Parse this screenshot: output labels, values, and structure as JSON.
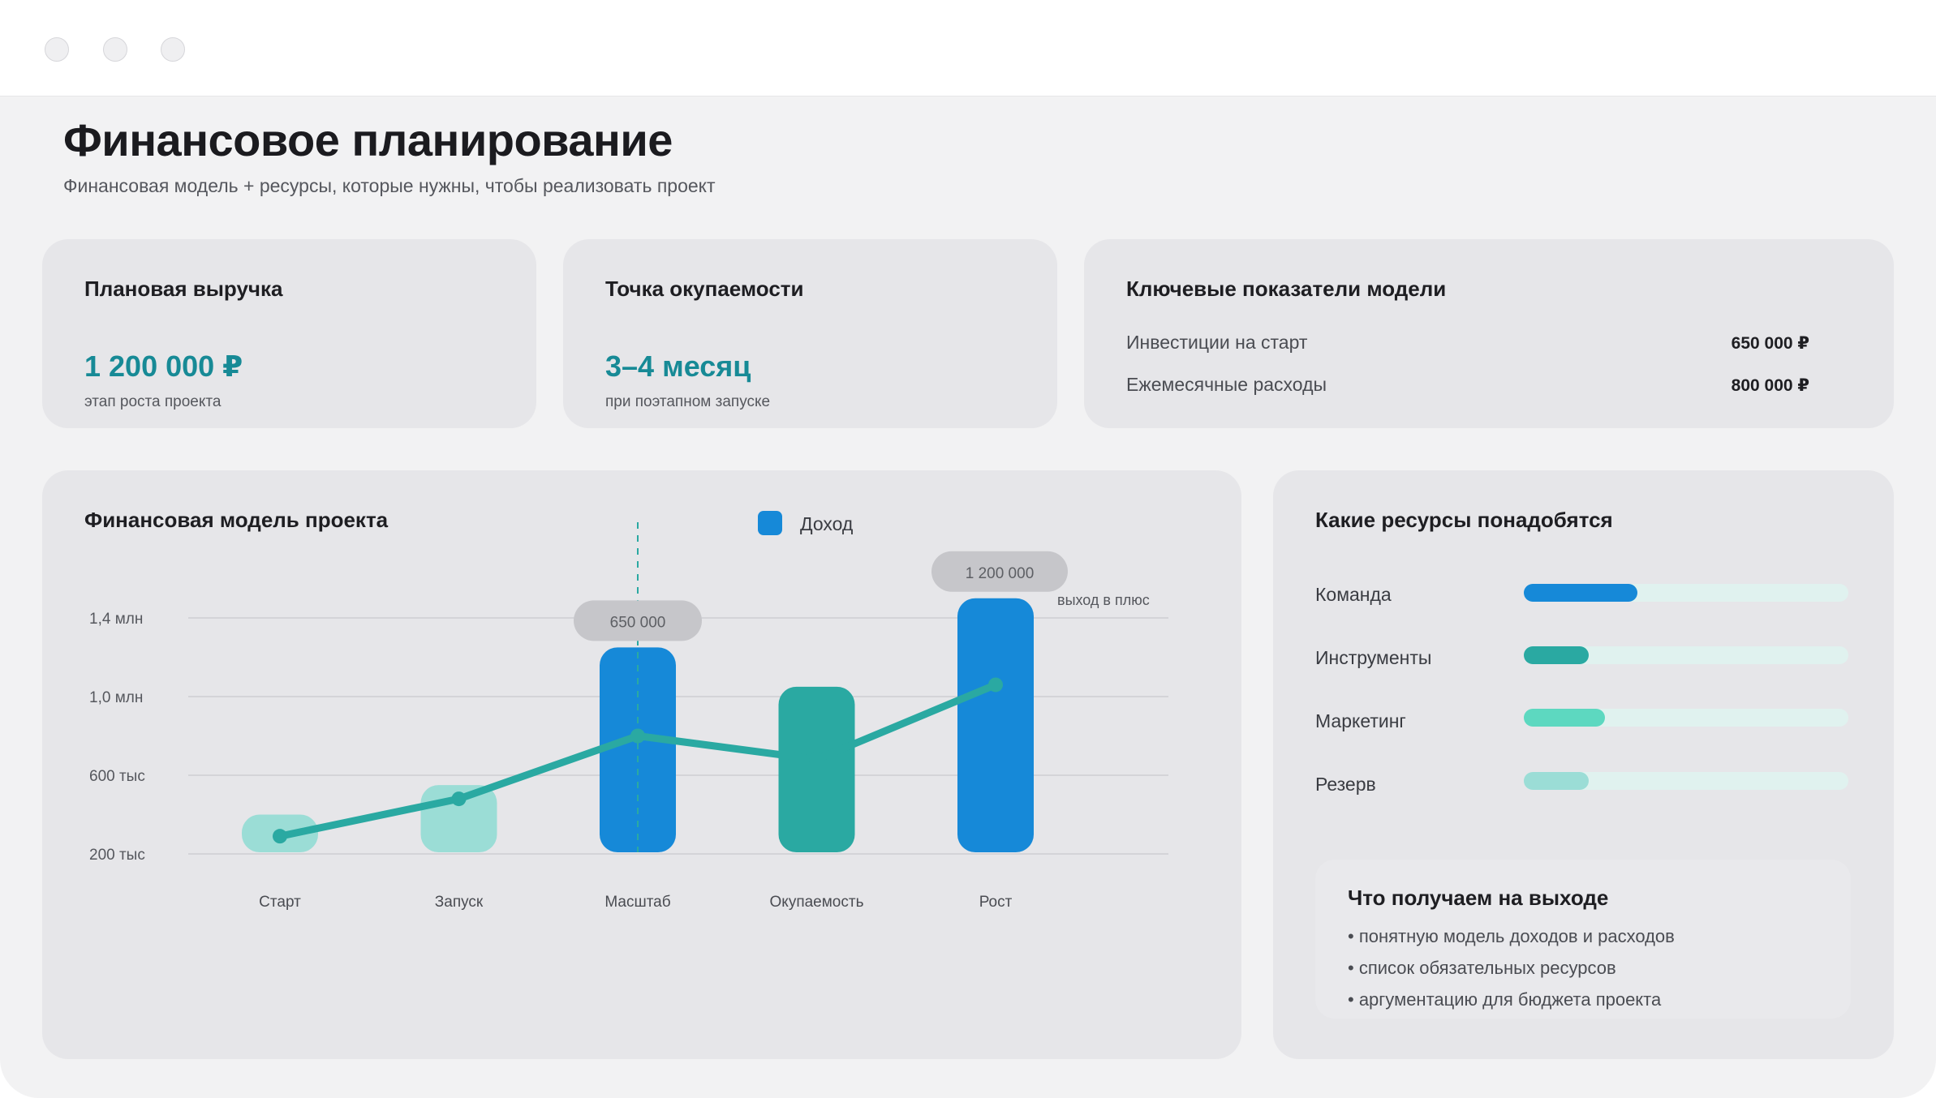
{
  "window": {
    "controls": [
      "close",
      "minimize",
      "maximize"
    ]
  },
  "header": {
    "title": "Финансовое планирование",
    "subtitle": "Финансовая модель + ресурсы, которые нужны, чтобы реализовать проект"
  },
  "kpis": {
    "revenue": {
      "title": "Плановая выручка",
      "value": "1 200 000 ₽",
      "caption": "этап роста проекта"
    },
    "payback": {
      "title": "Точка окупаемости",
      "value": "3–4 месяц",
      "caption": "при поэтапном запуске"
    },
    "metrics": {
      "title": "Ключевые показатели модели",
      "rows": [
        {
          "label": "Инвестиции на старт",
          "value": "650 000 ₽"
        },
        {
          "label": "Ежемесячные расходы",
          "value": "800 000 ₽"
        }
      ]
    }
  },
  "chart_panel": {
    "title": "Финансовая модель проекта"
  },
  "chart_data": {
    "type": "bar",
    "title": "Финансовая модель проекта",
    "categories": [
      "Старт",
      "Запуск",
      "Масштаб",
      "Окупаемость",
      "Рост"
    ],
    "series": [
      {
        "name": "Доход",
        "type": "bar",
        "values": [
          400000,
          550000,
          1250000,
          1050000,
          1500000
        ]
      },
      {
        "type": "line",
        "values": [
          290000,
          480000,
          800000,
          680000,
          1060000
        ]
      }
    ],
    "bar_colors": [
      "#9bddd6",
      "#9bddd6",
      "#1689d8",
      "#2aa9a2",
      "#1689d8"
    ],
    "line_color": "#2aa9a2",
    "legend_color": "#1689d8",
    "y_ticks": [
      200000,
      600000,
      1000000,
      1400000
    ],
    "y_tick_labels": [
      "200 тыс",
      "600 тыс",
      "1,0 млн",
      "1,4 млн"
    ],
    "ylim": [
      200000,
      1400000
    ],
    "grid": true,
    "legend_position": "top",
    "annotations": [
      {
        "category": "Масштаб",
        "text": "650 000"
      },
      {
        "category": "Рост",
        "text": "1 200 000",
        "note": "выход в плюс"
      }
    ],
    "marker_line_category": "Масштаб"
  },
  "resources": {
    "title": "Какие ресурсы понадобятся",
    "items": [
      {
        "label": "Команда",
        "fraction": 0.35,
        "color": "#1689d8"
      },
      {
        "label": "Инструменты",
        "fraction": 0.2,
        "color": "#2aa9a2"
      },
      {
        "label": "Маркетинг",
        "fraction": 0.25,
        "color": "#5dd8c0"
      },
      {
        "label": "Резерв",
        "fraction": 0.2,
        "color": "#9bddd6"
      }
    ]
  },
  "outputs": {
    "title": "Что получаем на выходе",
    "items": [
      "• понятную модель доходов и расходов",
      "• список обязательных ресурсов",
      "• аргументацию для бюджета проекта"
    ]
  }
}
